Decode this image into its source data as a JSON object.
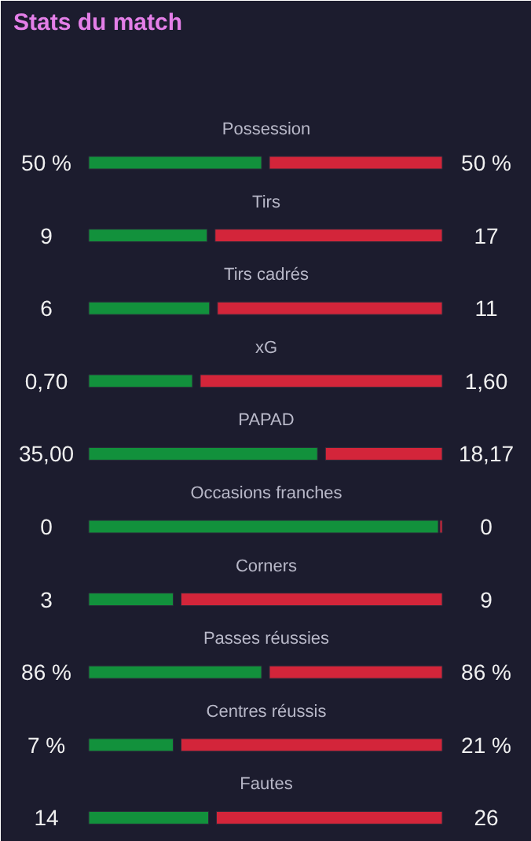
{
  "chart_data": {
    "type": "other",
    "title": "Stats du match",
    "categories": [
      "Possession",
      "Tirs",
      "Tirs cadrés",
      "xG",
      "PAPAD",
      "Occasions franches",
      "Corners",
      "Passes réussies",
      "Centres réussis",
      "Fautes"
    ],
    "series": [
      {
        "color": "#12913c",
        "values": [
          50,
          9,
          6,
          0.7,
          35.0,
          0,
          3,
          86,
          7,
          14
        ],
        "value_labels": [
          "50 %",
          "9",
          "6",
          "0,70",
          "35,00",
          "0",
          "3",
          "86 %",
          "7 %",
          "14"
        ]
      },
      {
        "color": "#d3253a",
        "values": [
          50,
          17,
          11,
          1.6,
          18.17,
          0,
          9,
          86,
          21,
          26
        ],
        "value_labels": [
          "50 %",
          "17",
          "11",
          "1,60",
          "18,17",
          "0",
          "9",
          "86 %",
          "21 %",
          "26"
        ]
      }
    ]
  }
}
